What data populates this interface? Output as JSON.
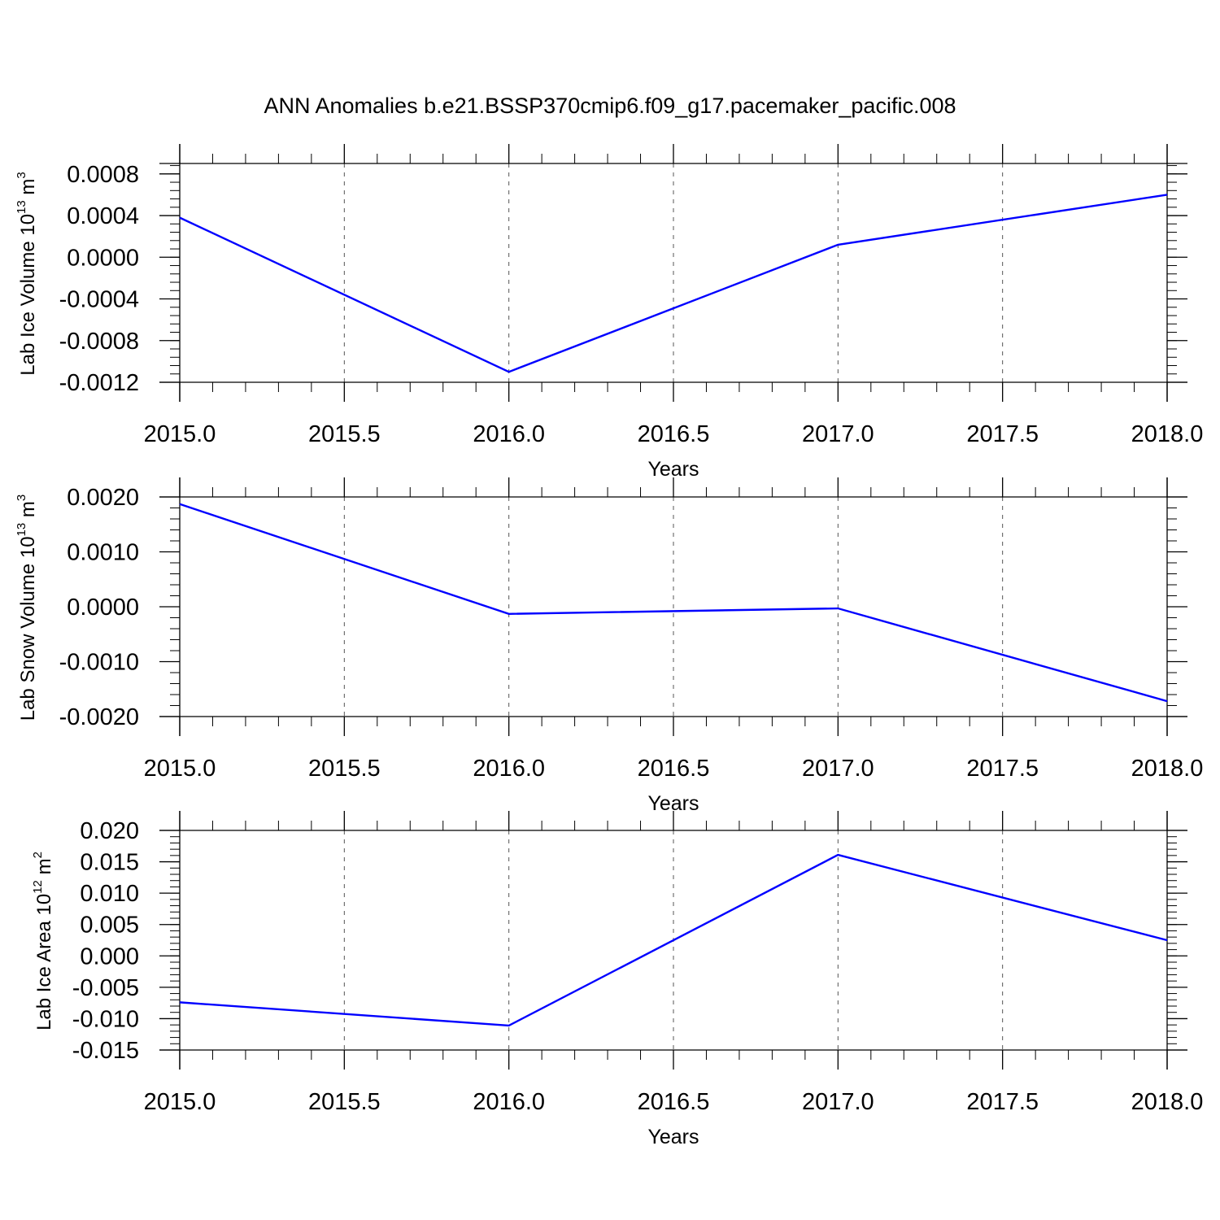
{
  "figure_title": "ANN Anomalies b.e21.BSSP370cmip6.f09_g17.pacemaker_pacific.008",
  "colors": {
    "line": "#0000ff",
    "axis": "#000000",
    "grid": "#555555"
  },
  "chart_data": [
    {
      "type": "line",
      "xlabel": "Years",
      "ylabel": {
        "text": "Lab Ice Volume 10",
        "exp": "13",
        "unit": " m",
        "unit_exp": "3"
      },
      "xlim": [
        2015.0,
        2018.0
      ],
      "ylim": [
        -0.0012,
        0.0009
      ],
      "x_ticks": [
        "2015.0",
        "2015.5",
        "2016.0",
        "2016.5",
        "2017.0",
        "2017.5",
        "2018.0"
      ],
      "y_ticks": [
        "0.0008",
        "0.0004",
        "0.0000",
        "-0.0004",
        "-0.0008",
        "-0.0012"
      ],
      "grid": "vertical-dashed",
      "x": [
        2015,
        2016,
        2017,
        2018
      ],
      "y": [
        0.00038,
        -0.0011,
        0.00012,
        0.0006
      ]
    },
    {
      "type": "line",
      "xlabel": "Years",
      "ylabel": {
        "text": "Lab Snow Volume 10",
        "exp": "13",
        "unit": " m",
        "unit_exp": "3"
      },
      "xlim": [
        2015.0,
        2018.0
      ],
      "ylim": [
        -0.002,
        0.002
      ],
      "x_ticks": [
        "2015.0",
        "2015.5",
        "2016.0",
        "2016.5",
        "2017.0",
        "2017.5",
        "2018.0"
      ],
      "y_ticks": [
        "0.0020",
        "0.0010",
        "0.0000",
        "-0.0010",
        "-0.0020"
      ],
      "grid": "vertical-dashed",
      "x": [
        2015,
        2016,
        2017,
        2018
      ],
      "y": [
        0.00187,
        -0.00013,
        -3e-05,
        -0.00172
      ]
    },
    {
      "type": "line",
      "xlabel": "Years",
      "ylabel": {
        "text": "Lab Ice Area 10",
        "exp": "12",
        "unit": " m",
        "unit_exp": "2"
      },
      "xlim": [
        2015.0,
        2018.0
      ],
      "ylim": [
        -0.015,
        0.02
      ],
      "x_ticks": [
        "2015.0",
        "2015.5",
        "2016.0",
        "2016.5",
        "2017.0",
        "2017.5",
        "2018.0"
      ],
      "y_ticks": [
        "0.020",
        "0.015",
        "0.010",
        "0.005",
        "0.000",
        "-0.005",
        "-0.010",
        "-0.015"
      ],
      "grid": "vertical-dashed",
      "x": [
        2015,
        2016,
        2017,
        2018
      ],
      "y": [
        -0.0074,
        -0.0111,
        0.0161,
        0.0025
      ]
    }
  ]
}
